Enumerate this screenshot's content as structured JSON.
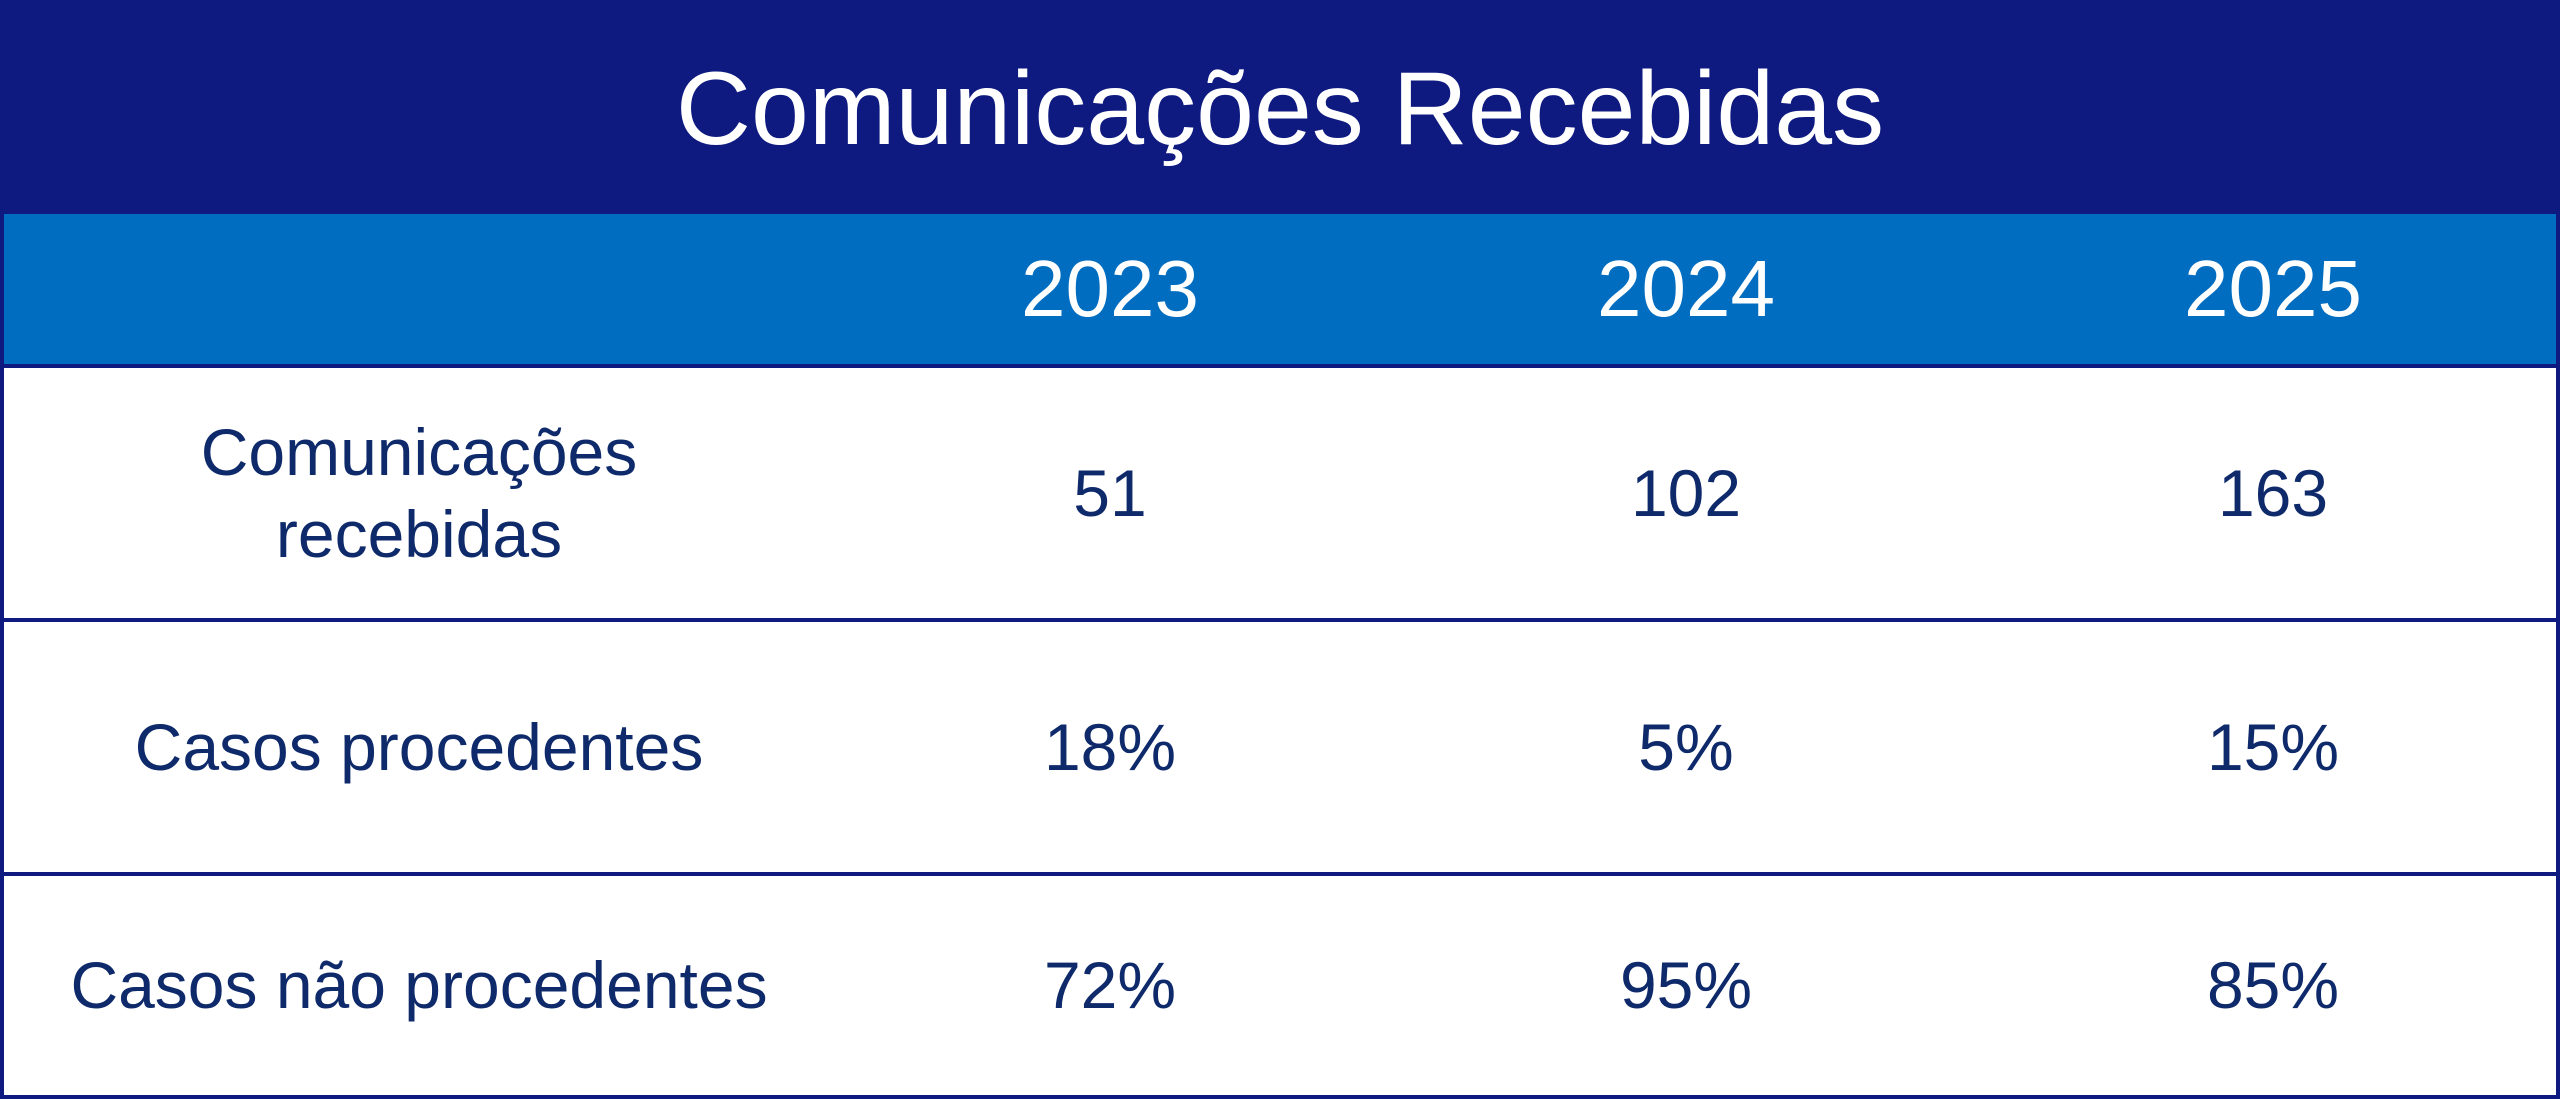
{
  "table": {
    "title": "Comunicações Recebidas",
    "columns": [
      "2023",
      "2024",
      "2025"
    ],
    "rows": [
      {
        "label_lines": [
          "Comunicações",
          "recebidas"
        ],
        "values": [
          "51",
          "102",
          "163"
        ]
      },
      {
        "label_lines": [
          "Casos procedentes"
        ],
        "values": [
          "18%",
          "5%",
          "15%"
        ]
      },
      {
        "label_lines": [
          "Casos não procedentes"
        ],
        "values": [
          "72%",
          "95%",
          "85%"
        ]
      }
    ]
  },
  "colors": {
    "title_bg": "#0e1a7f",
    "header_bg": "#006dc0",
    "text": "#0e2a6b",
    "border": "#0e1a7f"
  }
}
